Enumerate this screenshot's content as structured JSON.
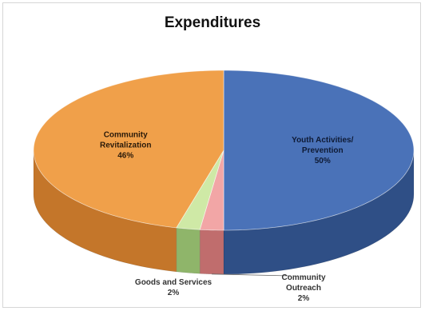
{
  "chart_data": {
    "type": "pie",
    "title": "Expenditures",
    "slices": [
      {
        "label_lines": [
          "Youth Activities/",
          "Prevention"
        ],
        "value_text": "50%",
        "value": 50,
        "color": "#4a72b8",
        "side_color": "#2f4f86"
      },
      {
        "label_lines": [
          "Community",
          "Outreach"
        ],
        "value_text": "2%",
        "value": 2,
        "color": "#f2a6a6",
        "side_color": "#c06d6d"
      },
      {
        "label_lines": [
          "Goods and Services"
        ],
        "value_text": "2%",
        "value": 2,
        "color": "#cfe9a6",
        "side_color": "#8fb56a"
      },
      {
        "label_lines": [
          "Community",
          "Revitalization"
        ],
        "value_text": "46%",
        "value": 46,
        "color": "#f0a04a",
        "side_color": "#c4762a"
      }
    ],
    "legend": "none",
    "three_d": true
  }
}
